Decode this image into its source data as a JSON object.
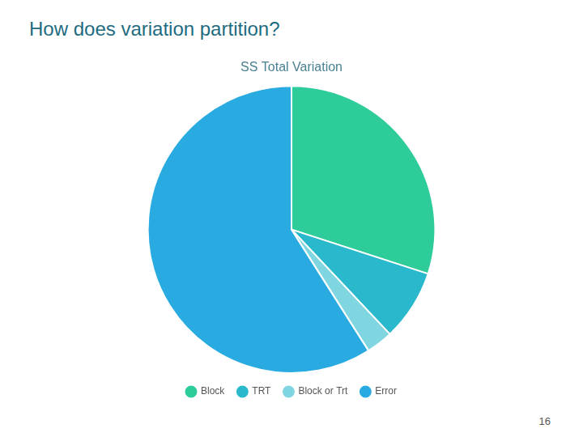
{
  "chart_data": {
    "type": "pie",
    "title": "SS Total Variation",
    "subtitle": "How does variation partition?",
    "categories": [
      "Block",
      "TRT",
      "Block or Trt",
      "Error"
    ],
    "values": [
      30,
      8,
      3,
      59
    ],
    "colors": [
      "#2ECC9A",
      "#29B8CC",
      "#7FD6E0",
      "#29ABE2"
    ],
    "legend": "bottom",
    "annotations": [
      "16"
    ]
  }
}
